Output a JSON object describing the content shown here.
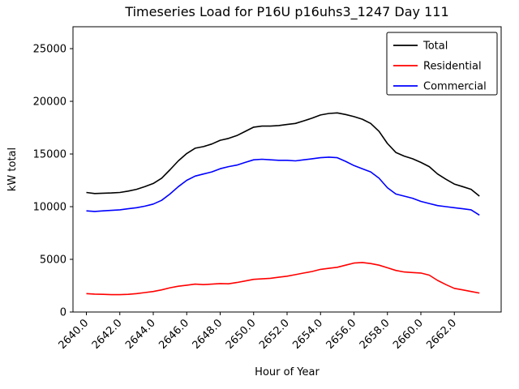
{
  "chart_data": {
    "type": "line",
    "title": "Timeseries Load for P16U p16uhs3_1247  Day 111",
    "xlabel": "Hour of Year",
    "ylabel": "kW total",
    "grid": false,
    "legend": {
      "position": "upper right",
      "entries": [
        "Total",
        "Residential",
        "Commercial"
      ]
    },
    "xlim": [
      2639.2,
      2664.8
    ],
    "ylim": [
      0,
      27080
    ],
    "xticks": [
      {
        "v": 2640,
        "label": "2640.0"
      },
      {
        "v": 2642,
        "label": "2642.0"
      },
      {
        "v": 2644,
        "label": "2644.0"
      },
      {
        "v": 2646,
        "label": "2646.0"
      },
      {
        "v": 2648,
        "label": "2648.0"
      },
      {
        "v": 2650,
        "label": "2650.0"
      },
      {
        "v": 2652,
        "label": "2652.0"
      },
      {
        "v": 2654,
        "label": "2654.0"
      },
      {
        "v": 2656,
        "label": "2656.0"
      },
      {
        "v": 2658,
        "label": "2658.0"
      },
      {
        "v": 2660,
        "label": "2660.0"
      },
      {
        "v": 2662,
        "label": "2662.0"
      }
    ],
    "yticks": [
      {
        "v": 0,
        "label": "0"
      },
      {
        "v": 5000,
        "label": "5000"
      },
      {
        "v": 10000,
        "label": "10000"
      },
      {
        "v": 15000,
        "label": "15000"
      },
      {
        "v": 20000,
        "label": "20000"
      },
      {
        "v": 25000,
        "label": "25000"
      }
    ],
    "x": [
      2640.0,
      2640.5,
      2641.0,
      2641.5,
      2642.0,
      2642.5,
      2643.0,
      2643.5,
      2644.0,
      2644.5,
      2645.0,
      2645.5,
      2646.0,
      2646.5,
      2647.0,
      2647.5,
      2648.0,
      2648.5,
      2649.0,
      2649.5,
      2650.0,
      2650.5,
      2651.0,
      2651.5,
      2652.0,
      2652.5,
      2653.0,
      2653.5,
      2654.0,
      2654.5,
      2655.0,
      2655.5,
      2656.0,
      2656.5,
      2657.0,
      2657.5,
      2658.0,
      2658.5,
      2659.0,
      2659.5,
      2660.0,
      2660.5,
      2661.0,
      2661.5,
      2662.0,
      2662.5,
      2663.0,
      2663.5
    ],
    "series": [
      {
        "name": "Total",
        "color": "#000000",
        "values": [
          11350,
          11250,
          11280,
          11300,
          11350,
          11480,
          11650,
          11900,
          12200,
          12700,
          13500,
          14350,
          15050,
          15550,
          15700,
          15950,
          16300,
          16480,
          16750,
          17150,
          17550,
          17650,
          17650,
          17700,
          17800,
          17900,
          18150,
          18400,
          18700,
          18850,
          18900,
          18750,
          18550,
          18300,
          17900,
          17150,
          16000,
          15150,
          14800,
          14550,
          14200,
          13800,
          13100,
          12600,
          12150,
          11900,
          11650,
          11000
        ]
      },
      {
        "name": "Residential",
        "color": "#ff0000",
        "values": [
          1750,
          1700,
          1680,
          1650,
          1650,
          1680,
          1750,
          1850,
          1950,
          2100,
          2300,
          2450,
          2550,
          2650,
          2600,
          2650,
          2700,
          2680,
          2800,
          2950,
          3100,
          3150,
          3200,
          3300,
          3400,
          3550,
          3700,
          3850,
          4050,
          4150,
          4250,
          4450,
          4650,
          4700,
          4600,
          4450,
          4200,
          3950,
          3800,
          3750,
          3700,
          3500,
          3000,
          2600,
          2250,
          2100,
          1950,
          1800
        ]
      },
      {
        "name": "Commercial",
        "color": "#0000ff",
        "values": [
          9600,
          9550,
          9600,
          9650,
          9700,
          9800,
          9900,
          10050,
          10250,
          10600,
          11200,
          11900,
          12500,
          12900,
          13100,
          13300,
          13600,
          13800,
          13950,
          14200,
          14450,
          14500,
          14450,
          14400,
          14400,
          14350,
          14450,
          14550,
          14650,
          14700,
          14650,
          14300,
          13900,
          13600,
          13300,
          12700,
          11800,
          11200,
          11000,
          10800,
          10500,
          10300,
          10100,
          10000,
          9900,
          9800,
          9700,
          9200
        ]
      }
    ]
  }
}
